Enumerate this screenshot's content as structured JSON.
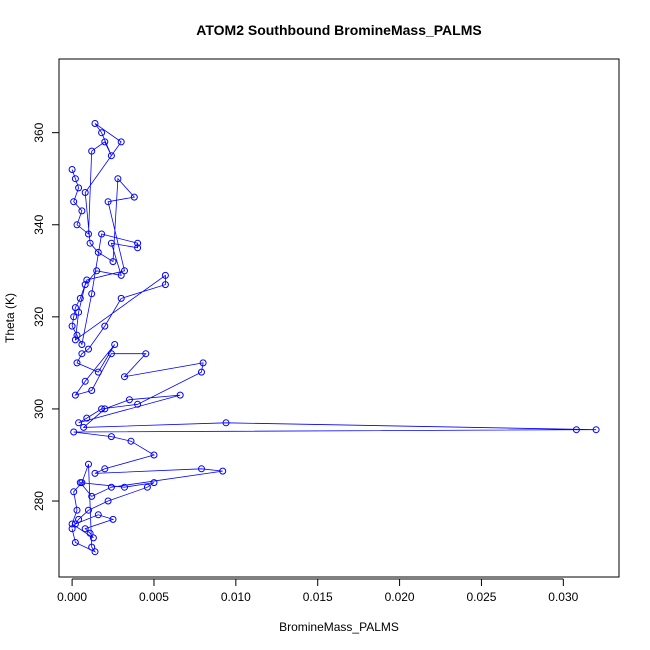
{
  "chart_data": {
    "type": "scatter",
    "title": "ATOM2 Southbound BromineMass_PALMS",
    "xlabel": "BromineMass_PALMS",
    "ylabel": "Theta (K)",
    "xlim": [
      -0.0008,
      0.0334
    ],
    "ylim": [
      263.5,
      376
    ],
    "x_ticks": [
      0.0,
      0.005,
      0.01,
      0.015,
      0.02,
      0.025,
      0.03
    ],
    "x_tick_labels": [
      "0.000",
      "0.005",
      "0.010",
      "0.015",
      "0.020",
      "0.025",
      "0.030"
    ],
    "y_ticks": [
      280,
      300,
      320,
      340,
      360
    ],
    "y_tick_labels": [
      "280",
      "300",
      "320",
      "340",
      "360"
    ],
    "grid": false,
    "series": [
      {
        "color": "#0000ff",
        "marker": "open-circle",
        "connected": true,
        "x": [
          0.0,
          0.0002,
          0.0004,
          0.0001,
          0.0006,
          0.0003,
          0.001,
          0.0012,
          0.002,
          0.0024,
          0.0018,
          0.0014,
          0.003,
          0.0008,
          0.0011,
          0.0016,
          0.0025,
          0.0028,
          0.0038,
          0.0022,
          0.0032,
          0.0009,
          0.0005,
          0.0002,
          0.0001,
          0.0,
          0.0003,
          0.0006,
          0.0012,
          0.0018,
          0.004,
          0.004,
          0.0024,
          0.003,
          0.0015,
          0.0008,
          0.0004,
          0.0002,
          0.0057,
          0.0057,
          0.003,
          0.002,
          0.001,
          0.0006,
          0.0003,
          0.0016,
          0.0026,
          0.0008,
          0.0002,
          0.0012,
          0.0024,
          0.0045,
          0.0032,
          0.008,
          0.0079,
          0.004,
          0.0018,
          0.0009,
          0.0004,
          0.0066,
          0.0035,
          0.002,
          0.0007,
          0.0094,
          0.032,
          0.0308,
          0.0001,
          0.0024,
          0.0036,
          0.005,
          0.002,
          0.0014,
          0.0079,
          0.0092,
          0.0024,
          0.0012,
          0.0005,
          0.0032,
          0.005,
          0.0046,
          0.0022,
          0.001,
          0.0004,
          0.0002,
          0.0016,
          0.0025,
          0.0008,
          0.0011,
          0.0013,
          0.0,
          0.0003,
          0.0001,
          0.0006,
          0.001,
          0.0012,
          0.0014,
          0.0002,
          0.0
        ],
        "y": [
          352,
          350,
          348,
          345,
          343,
          340,
          338,
          356,
          358,
          355,
          360,
          362,
          358,
          347,
          336,
          334,
          332,
          350,
          346,
          345,
          330,
          328,
          324,
          322,
          320,
          318,
          316,
          314,
          325,
          338,
          336,
          335,
          336,
          329,
          330,
          327,
          321,
          315,
          329,
          327,
          324,
          318,
          313,
          312,
          310,
          308,
          314,
          306,
          303,
          304,
          312,
          312,
          307,
          310,
          308,
          301,
          300,
          298,
          297,
          303,
          302,
          300,
          296,
          297,
          295.5,
          295.5,
          295,
          294,
          293,
          290,
          287,
          286,
          287,
          286.5,
          283,
          281,
          284,
          283,
          284,
          283,
          280,
          278,
          276,
          275,
          277,
          276,
          274,
          273,
          272,
          275,
          278,
          282,
          284,
          288,
          270,
          269,
          271,
          274
        ]
      }
    ]
  }
}
